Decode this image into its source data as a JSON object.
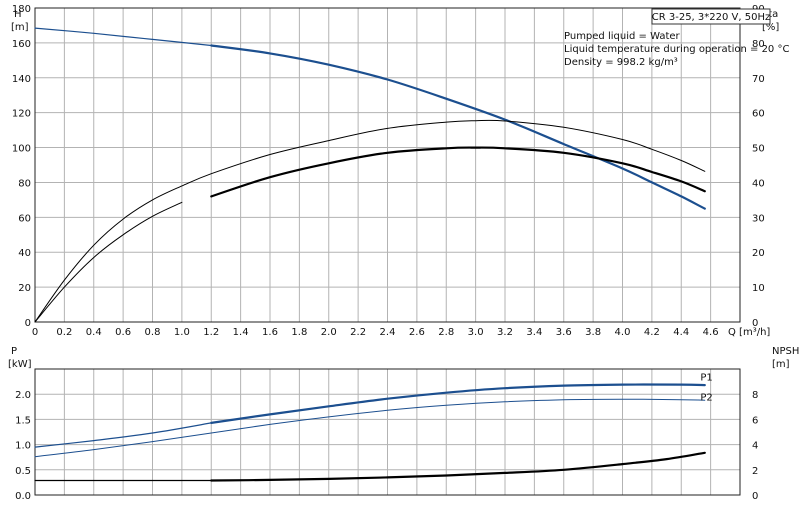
{
  "colors": {
    "blue": "#1c4f8f",
    "black": "#000000",
    "grid": "#b3b3b3"
  },
  "info": {
    "pump": "CR 3-25, 3*220 V, 50Hz",
    "liquid": "Pumped liquid = Water",
    "temperature": "Liquid temperature during operation = 20 °C",
    "density": "Density = 998.2 kg/m³"
  },
  "chart_data": [
    {
      "type": "line",
      "title": "",
      "xlabel": "Q [m³/h]",
      "xlim": [
        0,
        4.8
      ],
      "xticks": [
        "0",
        "0.2",
        "0.4",
        "0.6",
        "0.8",
        "1.0",
        "1.2",
        "1.4",
        "1.6",
        "1.8",
        "2.0",
        "2.2",
        "2.4",
        "2.6",
        "2.8",
        "3.0",
        "3.2",
        "3.4",
        "3.6",
        "3.8",
        "4.0",
        "4.2",
        "4.4",
        "4.6"
      ],
      "xtick_values": [
        0,
        0.2,
        0.4,
        0.6,
        0.8,
        1.0,
        1.2,
        1.4,
        1.6,
        1.8,
        2.0,
        2.2,
        2.4,
        2.6,
        2.8,
        3.0,
        3.2,
        3.4,
        3.6,
        3.8,
        4.0,
        4.2,
        4.4,
        4.6
      ],
      "y_left": {
        "label_top": "H",
        "label_unit": "[m]",
        "lim": [
          0,
          180
        ],
        "ticks": [
          "0",
          "20",
          "40",
          "60",
          "80",
          "100",
          "120",
          "140",
          "160",
          "180"
        ],
        "tick_values": [
          0,
          20,
          40,
          60,
          80,
          100,
          120,
          140,
          160,
          180
        ]
      },
      "y_right": {
        "label_top": "eta",
        "label_unit": "[%]",
        "lim": [
          0,
          90
        ],
        "ticks": [
          "0",
          "10",
          "20",
          "30",
          "40",
          "50",
          "60",
          "70",
          "80",
          "90"
        ],
        "tick_values": [
          0,
          10,
          20,
          30,
          40,
          50,
          60,
          70,
          80,
          90
        ]
      },
      "grid": true,
      "series": [
        {
          "axis": "left",
          "color": "blue",
          "width": 2.2,
          "x": [
            1.2,
            1.6,
            2.0,
            2.4,
            2.8,
            3.2,
            3.6,
            4.0,
            4.2,
            4.4,
            4.56
          ],
          "y": [
            158.5,
            154,
            147.5,
            139,
            128,
            116,
            102,
            88,
            80,
            72,
            65
          ]
        },
        {
          "axis": "left",
          "color": "blue",
          "width": 1.2,
          "x": [
            0,
            0.4,
            0.8,
            1.2
          ],
          "y": [
            168.5,
            165.5,
            162,
            158.5
          ]
        },
        {
          "axis": "right",
          "color": "black",
          "width": 1.0,
          "x": [
            0,
            0.2,
            0.4,
            0.6,
            0.8,
            1.0,
            1.2,
            1.6,
            2.0,
            2.4,
            2.8,
            3.0,
            3.2,
            3.6,
            4.0,
            4.2,
            4.4,
            4.56
          ],
          "y": [
            0,
            12,
            22,
            29.5,
            35,
            39,
            42.5,
            48,
            52,
            55.5,
            57.3,
            57.7,
            57.6,
            55.8,
            52.3,
            49.5,
            46.3,
            43.2
          ]
        },
        {
          "axis": "right",
          "color": "black",
          "width": 1.0,
          "x": [
            0,
            0.2,
            0.4,
            0.6,
            0.8,
            1.0
          ],
          "y": [
            0,
            10,
            18.5,
            25,
            30.3,
            34.3
          ]
        },
        {
          "axis": "right",
          "color": "black",
          "width": 2.2,
          "x": [
            1.2,
            1.6,
            2.0,
            2.4,
            2.8,
            3.0,
            3.2,
            3.6,
            4.0,
            4.2,
            4.4,
            4.56
          ],
          "y": [
            36,
            41.5,
            45.5,
            48.5,
            49.8,
            50.0,
            49.8,
            48.5,
            45.5,
            43,
            40.3,
            37.5
          ]
        }
      ]
    },
    {
      "type": "line",
      "title": "",
      "xlim": [
        0,
        4.8
      ],
      "y_left": {
        "label_top": "P",
        "label_unit": "[kW]",
        "lim": [
          0,
          2.5
        ],
        "ticks": [
          "0.0",
          "0.5",
          "1.0",
          "1.5",
          "2.0"
        ],
        "tick_values": [
          0,
          0.5,
          1.0,
          1.5,
          2.0
        ]
      },
      "y_right": {
        "label_top": "NPSH",
        "label_unit": "[m]",
        "lim": [
          0,
          10
        ],
        "ticks": [
          "0",
          "2",
          "4",
          "6",
          "8"
        ],
        "tick_values": [
          0,
          2,
          4,
          6,
          8
        ]
      },
      "grid": true,
      "series": [
        {
          "name": "P1",
          "axis": "left",
          "color": "blue",
          "width": 1.2,
          "x": [
            0,
            0.4,
            0.8,
            1.2
          ],
          "y": [
            0.95,
            1.08,
            1.23,
            1.43
          ]
        },
        {
          "name": "P1",
          "axis": "left",
          "color": "blue",
          "width": 2.2,
          "x": [
            1.2,
            1.6,
            2.0,
            2.4,
            2.8,
            3.2,
            3.6,
            4.0,
            4.4,
            4.56
          ],
          "y": [
            1.43,
            1.6,
            1.76,
            1.91,
            2.03,
            2.12,
            2.17,
            2.19,
            2.19,
            2.18
          ]
        },
        {
          "name": "P2",
          "axis": "left",
          "color": "blue",
          "width": 1.0,
          "x": [
            0,
            0.4,
            0.8,
            1.2,
            1.6,
            2.0,
            2.4,
            2.8,
            3.2,
            3.6,
            4.0,
            4.4,
            4.56
          ],
          "y": [
            0.76,
            0.9,
            1.06,
            1.23,
            1.4,
            1.55,
            1.68,
            1.78,
            1.85,
            1.89,
            1.9,
            1.89,
            1.88
          ]
        },
        {
          "axis": "right",
          "color": "black",
          "width": 1.2,
          "x": [
            0,
            1.2
          ],
          "y": [
            1.15,
            1.15
          ]
        },
        {
          "axis": "right",
          "color": "black",
          "width": 2.2,
          "x": [
            1.2,
            1.6,
            2.0,
            2.4,
            2.8,
            3.2,
            3.6,
            4.0,
            4.3,
            4.56
          ],
          "y": [
            1.15,
            1.2,
            1.28,
            1.4,
            1.55,
            1.75,
            2.0,
            2.45,
            2.85,
            3.35
          ]
        }
      ],
      "labels": [
        {
          "text": "P1",
          "x": 4.53,
          "y": 2.19,
          "axis": "left"
        },
        {
          "text": "P2",
          "x": 4.53,
          "y": 1.8,
          "axis": "left"
        }
      ]
    }
  ]
}
